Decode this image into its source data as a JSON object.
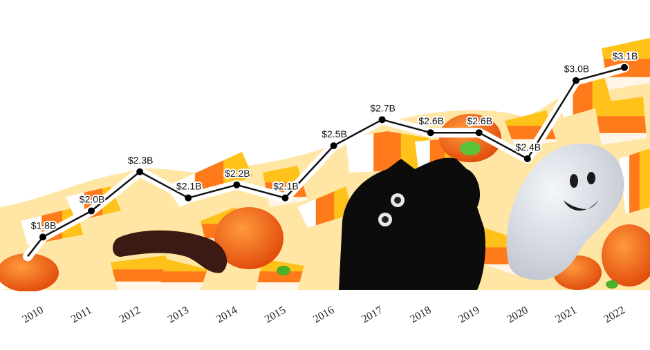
{
  "chart_data": {
    "type": "line",
    "title": "",
    "xlabel": "",
    "ylabel": "",
    "x": [
      "2010",
      "2011",
      "2012",
      "2013",
      "2014",
      "2015",
      "2016",
      "2017",
      "2018",
      "2019",
      "2020",
      "2021",
      "2022"
    ],
    "values": [
      1.8,
      2.0,
      2.3,
      2.1,
      2.2,
      2.1,
      2.5,
      2.7,
      2.6,
      2.6,
      2.4,
      3.0,
      3.1
    ],
    "data_labels": [
      "$1.8B",
      "$2.0B",
      "$2.3B",
      "$2.1B",
      "$2.2B",
      "$2.1B",
      "$2.5B",
      "$2.7B",
      "$2.6B",
      "$2.6B",
      "$2.4B",
      "$3.0B",
      "$3.1B"
    ],
    "ylim": [
      1.5,
      3.3
    ],
    "grid": false,
    "background": "photo of Halloween candy: candy corn, orange pumpkins, black licorice cat, gummy worm, foil ghost",
    "colors": {
      "line": "#111111",
      "halo": "#ffffff",
      "marker": "#000000"
    }
  }
}
